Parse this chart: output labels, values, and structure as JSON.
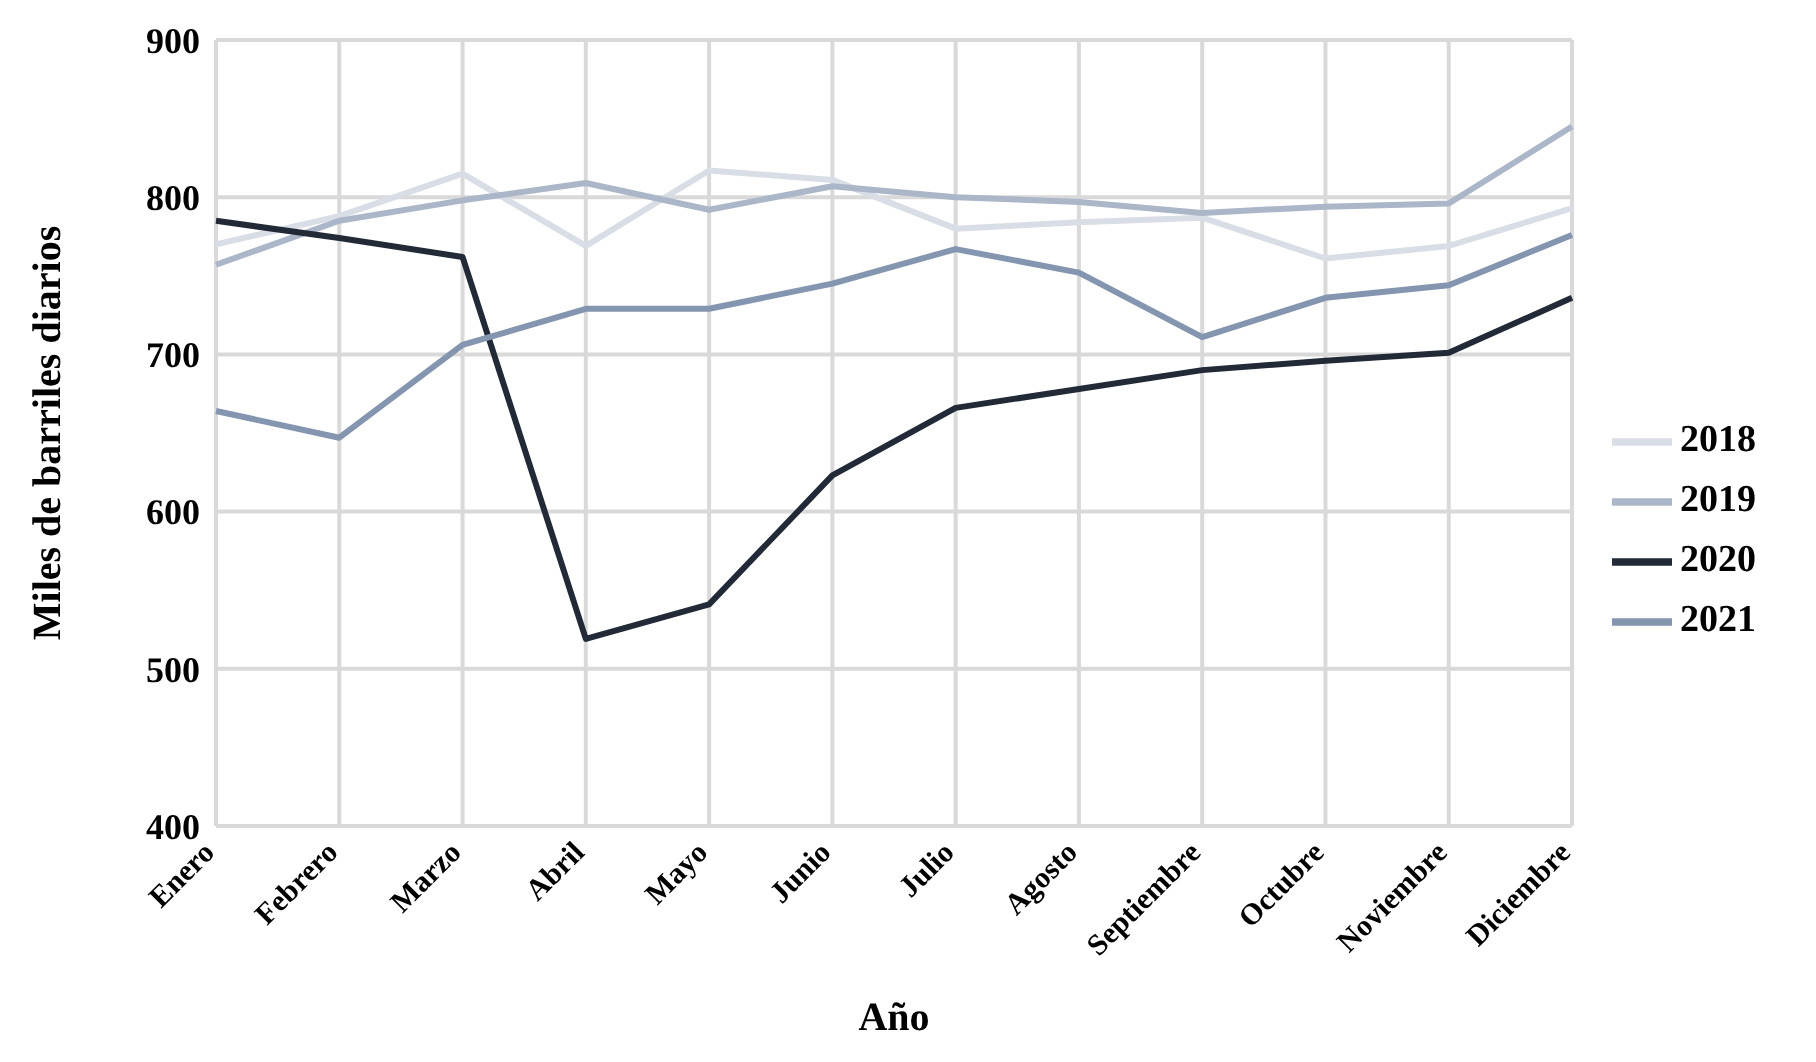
{
  "chart_data": {
    "type": "line",
    "xlabel": "Año",
    "ylabel": "Miles de barriles diarios",
    "categories": [
      "Enero",
      "Febrero",
      "Marzo",
      "Abril",
      "Mayo",
      "Junio",
      "Julio",
      "Agosto",
      "Septiembre",
      "Octubre",
      "Noviembre",
      "Diciembre"
    ],
    "series": [
      {
        "name": "2018",
        "color": "#d9dde6",
        "values": [
          770,
          788,
          815,
          769,
          817,
          811,
          780,
          784,
          787,
          761,
          769,
          793
        ]
      },
      {
        "name": "2019",
        "color": "#abb6c8",
        "values": [
          757,
          785,
          798,
          809,
          792,
          807,
          800,
          797,
          790,
          794,
          796,
          845
        ]
      },
      {
        "name": "2020",
        "color": "#222a38",
        "values": [
          785,
          774,
          762,
          519,
          541,
          623,
          666,
          678,
          690,
          696,
          701,
          736
        ]
      },
      {
        "name": "2021",
        "color": "#8495b0",
        "values": [
          664,
          647,
          706,
          729,
          729,
          745,
          767,
          752,
          711,
          736,
          744,
          776
        ]
      }
    ],
    "ylim": [
      400,
      900
    ],
    "yticks": [
      400,
      500,
      600,
      700,
      800,
      900
    ],
    "grid": true,
    "legend": "right",
    "marker": "none",
    "line_style": "solid"
  }
}
